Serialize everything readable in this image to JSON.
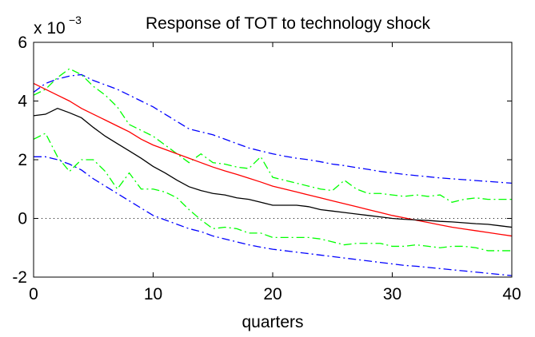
{
  "chart_data": {
    "type": "line",
    "title": "Response of TOT to technology shock",
    "y_multiplier": {
      "base": "x 10",
      "exponent": "−3"
    },
    "xlabel": "quarters",
    "x": [
      0,
      1,
      2,
      3,
      4,
      5,
      6,
      7,
      8,
      9,
      10,
      11,
      12,
      13,
      14,
      15,
      16,
      17,
      18,
      19,
      20,
      21,
      22,
      23,
      24,
      25,
      26,
      27,
      28,
      29,
      30,
      31,
      32,
      33,
      34,
      35,
      36,
      37,
      38,
      39,
      40
    ],
    "xlim": [
      0,
      40
    ],
    "xticks": [
      0,
      10,
      20,
      30,
      40
    ],
    "ylim": [
      -2,
      6
    ],
    "yticks": [
      -2,
      0,
      2,
      4,
      6
    ],
    "zero_line": 0,
    "series": [
      {
        "color": "#0000ff",
        "style": "dashdot",
        "values": [
          4.3,
          4.6,
          4.75,
          4.85,
          4.9,
          4.7,
          4.55,
          4.4,
          4.2,
          4.0,
          3.8,
          3.55,
          3.3,
          3.05,
          2.95,
          2.85,
          2.7,
          2.55,
          2.4,
          2.3,
          2.2,
          2.12,
          2.05,
          2.0,
          1.93,
          1.85,
          1.8,
          1.73,
          1.67,
          1.6,
          1.55,
          1.5,
          1.46,
          1.42,
          1.38,
          1.35,
          1.32,
          1.29,
          1.26,
          1.23,
          1.2
        ]
      },
      {
        "color": "#0000ff",
        "style": "dashdot",
        "values": [
          2.1,
          2.1,
          2.0,
          1.85,
          1.65,
          1.35,
          1.1,
          0.85,
          0.6,
          0.35,
          0.1,
          -0.05,
          -0.2,
          -0.35,
          -0.45,
          -0.6,
          -0.7,
          -0.8,
          -0.9,
          -0.98,
          -1.05,
          -1.1,
          -1.15,
          -1.2,
          -1.25,
          -1.3,
          -1.35,
          -1.4,
          -1.45,
          -1.5,
          -1.55,
          -1.6,
          -1.63,
          -1.67,
          -1.71,
          -1.75,
          -1.79,
          -1.83,
          -1.87,
          -1.91,
          -1.95
        ]
      },
      {
        "color": "#00ff00",
        "style": "dashdot",
        "values": [
          4.2,
          4.4,
          4.8,
          5.1,
          4.9,
          4.5,
          4.2,
          3.8,
          3.2,
          3.0,
          2.8,
          2.5,
          2.2,
          1.9,
          2.2,
          1.9,
          1.85,
          1.75,
          1.7,
          2.1,
          1.4,
          1.3,
          1.2,
          1.1,
          1.0,
          0.95,
          1.3,
          1.0,
          0.85,
          0.85,
          0.8,
          0.75,
          0.8,
          0.75,
          0.8,
          0.55,
          0.65,
          0.7,
          0.65,
          0.65,
          0.65
        ]
      },
      {
        "color": "#00ff00",
        "style": "dashdot",
        "values": [
          2.7,
          2.9,
          2.1,
          1.6,
          2.0,
          2.0,
          1.6,
          1.0,
          1.55,
          1.0,
          1.0,
          0.9,
          0.7,
          0.3,
          -0.05,
          -0.35,
          -0.3,
          -0.35,
          -0.5,
          -0.5,
          -0.65,
          -0.65,
          -0.65,
          -0.65,
          -0.7,
          -0.8,
          -0.9,
          -0.85,
          -0.85,
          -0.85,
          -0.95,
          -0.95,
          -0.9,
          -0.95,
          -1.0,
          -0.95,
          -0.95,
          -1.0,
          -1.1,
          -1.1,
          -1.1
        ]
      },
      {
        "color": "#ff0000",
        "style": "solid",
        "values": [
          4.6,
          4.4,
          4.2,
          4.0,
          3.75,
          3.55,
          3.35,
          3.15,
          2.95,
          2.7,
          2.5,
          2.35,
          2.2,
          2.05,
          1.9,
          1.75,
          1.62,
          1.5,
          1.37,
          1.24,
          1.1,
          1.0,
          0.9,
          0.8,
          0.7,
          0.6,
          0.5,
          0.4,
          0.3,
          0.2,
          0.1,
          0.02,
          -0.06,
          -0.14,
          -0.22,
          -0.3,
          -0.36,
          -0.42,
          -0.48,
          -0.54,
          -0.6
        ]
      },
      {
        "color": "#000000",
        "style": "solid",
        "values": [
          3.5,
          3.55,
          3.75,
          3.6,
          3.43,
          3.1,
          2.8,
          2.55,
          2.3,
          2.05,
          1.77,
          1.55,
          1.3,
          1.08,
          0.95,
          0.85,
          0.8,
          0.7,
          0.65,
          0.55,
          0.45,
          0.45,
          0.45,
          0.4,
          0.3,
          0.25,
          0.2,
          0.15,
          0.1,
          0.05,
          0.0,
          -0.03,
          -0.05,
          -0.07,
          -0.1,
          -0.12,
          -0.15,
          -0.18,
          -0.2,
          -0.25,
          -0.3
        ]
      }
    ]
  }
}
